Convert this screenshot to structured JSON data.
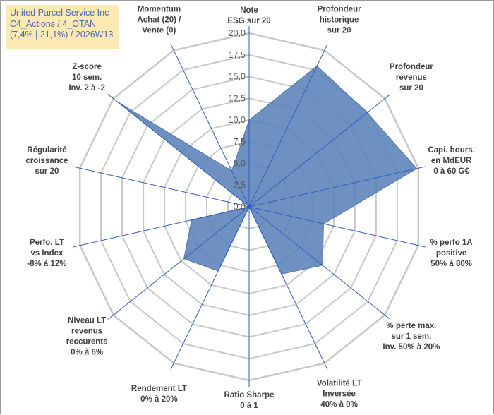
{
  "title_box": {
    "line1": "United Parcel Service Inc",
    "line2": "C4_Actions / 4_OTAN",
    "line3": "(7,4% | 21,1%) / 2026W13"
  },
  "colors": {
    "fill": "#5b82b8",
    "stroke": "#4f74ab",
    "grid": "#c8c8c8",
    "axis": "#2f5fbf",
    "title_bg": "#fde9b3",
    "title_text": "#4a6aa8"
  },
  "chart_data": {
    "type": "radar",
    "title": "",
    "rmax": 20,
    "ticks": [
      "0,0",
      "2,5",
      "5,0",
      "7,5",
      "10,0",
      "12,5",
      "15,0",
      "17,5",
      "20,0"
    ],
    "grid": true,
    "axes": [
      [
        "Note",
        "ESG sur 20"
      ],
      [
        "Profondeur",
        "historique",
        "sur 20"
      ],
      [
        "Profondeur",
        "revenus",
        "sur 20"
      ],
      [
        "Capi. bours.",
        "en MdEUR",
        "0 à 60 G€"
      ],
      [
        "% perfo 1A",
        "positive",
        "50% à 80%"
      ],
      [
        "% perte max.",
        "sur 1 sem.",
        "Inv. 50% à 20%"
      ],
      [
        "Volatilité LT",
        "Inversée",
        "40% à 0%"
      ],
      [
        "Ratio Sharpe",
        "0 à 1"
      ],
      [
        "Rendement LT",
        "0% à 20%"
      ],
      [
        "Niveau LT",
        "revenus",
        "reccurents",
        "0% à 6%"
      ],
      [
        "Perfo. LT",
        "vs Index",
        "-8% à 12%"
      ],
      [
        "Régularité",
        "croissance",
        "sur 20"
      ],
      [
        "Z-score",
        "10 sem.",
        "Inv. 2 à -2"
      ],
      [
        "Momentum",
        "Achat (20) /",
        "Vente (0)"
      ]
    ],
    "series": [
      {
        "values": [
          10.0,
          18.0,
          17.4,
          19.8,
          8.8,
          10.8,
          8.6,
          0.0,
          8.2,
          9.6,
          6.8,
          0.0,
          19.4,
          4.6
        ]
      }
    ]
  }
}
